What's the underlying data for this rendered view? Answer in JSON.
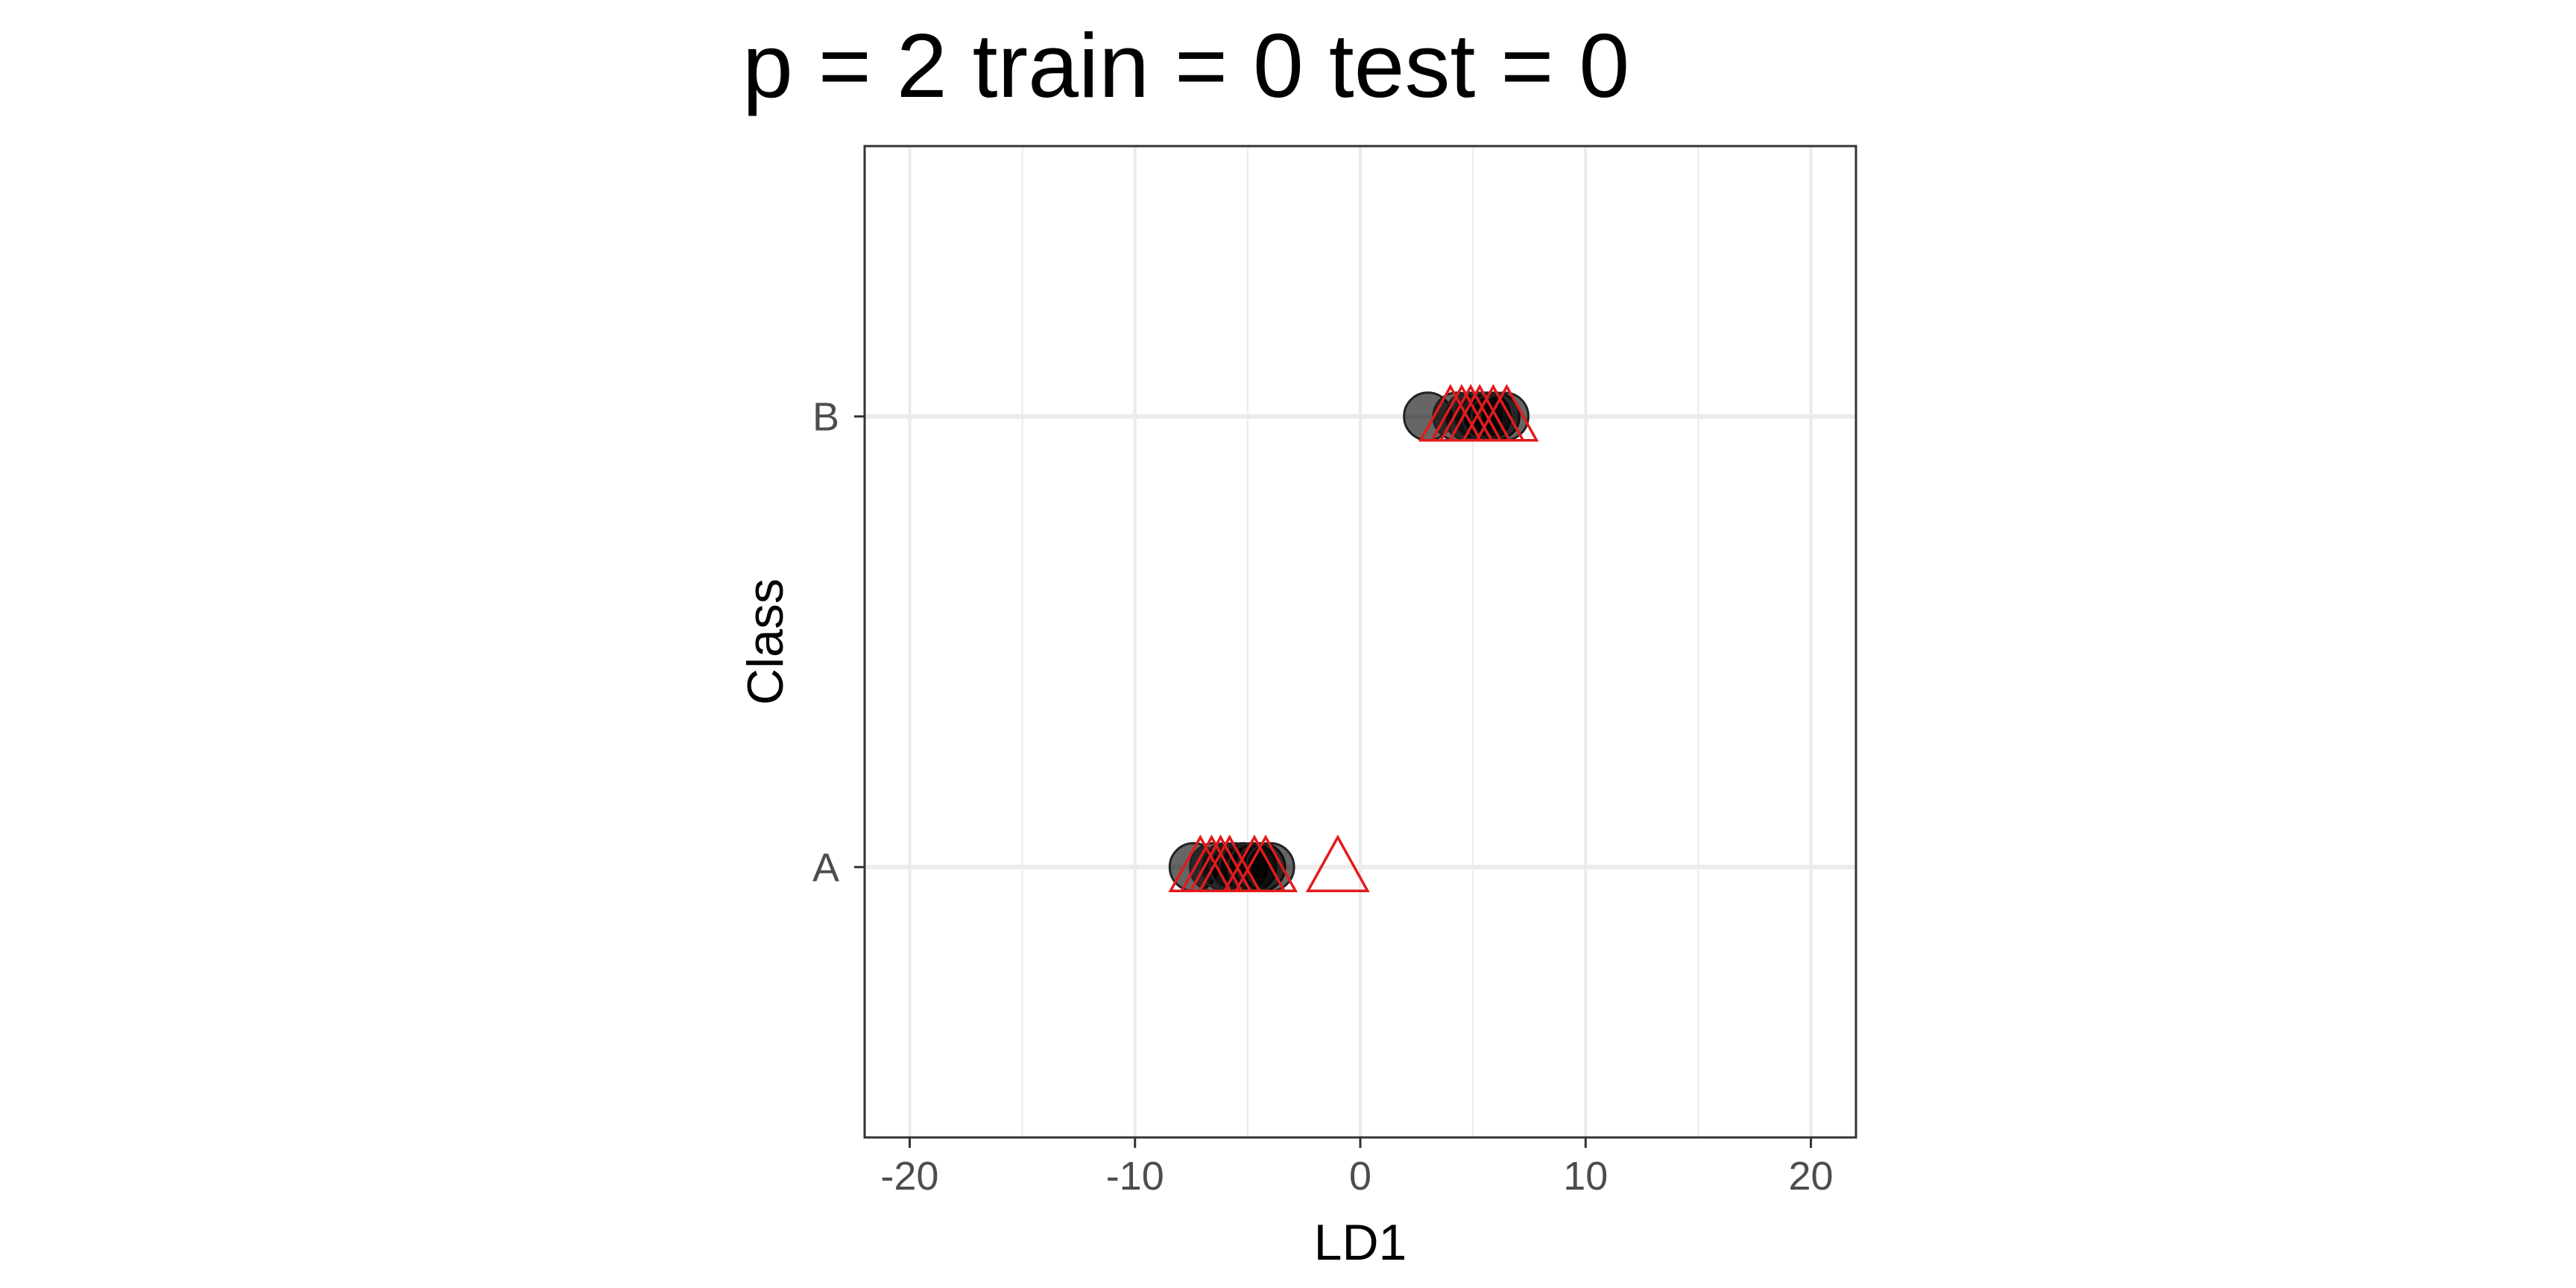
{
  "chart_data": {
    "type": "scatter",
    "title": "p = 2 train = 0 test = 0",
    "xlabel": "LD1",
    "ylabel": "Class",
    "xlim": [
      -22,
      22
    ],
    "x_ticks": [
      -20,
      -10,
      0,
      10,
      20
    ],
    "x_tick_labels": [
      "-20",
      "-10",
      "0",
      "10",
      "20"
    ],
    "y_categories": [
      "A",
      "B"
    ],
    "grid": true,
    "series": [
      {
        "marker": "circle",
        "color": "#000000",
        "opacity": 0.6,
        "points": [
          {
            "x": -7.4,
            "y": "A"
          },
          {
            "x": -6.5,
            "y": "A"
          },
          {
            "x": -6.0,
            "y": "A"
          },
          {
            "x": -5.6,
            "y": "A"
          },
          {
            "x": -5.2,
            "y": "A"
          },
          {
            "x": -4.8,
            "y": "A"
          },
          {
            "x": -4.4,
            "y": "A"
          },
          {
            "x": -4.0,
            "y": "A"
          },
          {
            "x": 3.0,
            "y": "B"
          },
          {
            "x": 4.3,
            "y": "B"
          },
          {
            "x": 4.8,
            "y": "B"
          },
          {
            "x": 5.2,
            "y": "B"
          },
          {
            "x": 5.6,
            "y": "B"
          },
          {
            "x": 6.0,
            "y": "B"
          },
          {
            "x": 6.4,
            "y": "B"
          }
        ]
      },
      {
        "marker": "triangle",
        "color": "#e31a1c",
        "points": [
          {
            "x": -7.1,
            "y": "A"
          },
          {
            "x": -6.6,
            "y": "A"
          },
          {
            "x": -6.2,
            "y": "A"
          },
          {
            "x": -5.8,
            "y": "A"
          },
          {
            "x": -4.7,
            "y": "A"
          },
          {
            "x": -4.2,
            "y": "A"
          },
          {
            "x": -1.0,
            "y": "A"
          },
          {
            "x": 4.0,
            "y": "B"
          },
          {
            "x": 4.5,
            "y": "B"
          },
          {
            "x": 4.9,
            "y": "B"
          },
          {
            "x": 5.3,
            "y": "B"
          },
          {
            "x": 5.9,
            "y": "B"
          },
          {
            "x": 6.5,
            "y": "B"
          }
        ]
      }
    ]
  }
}
